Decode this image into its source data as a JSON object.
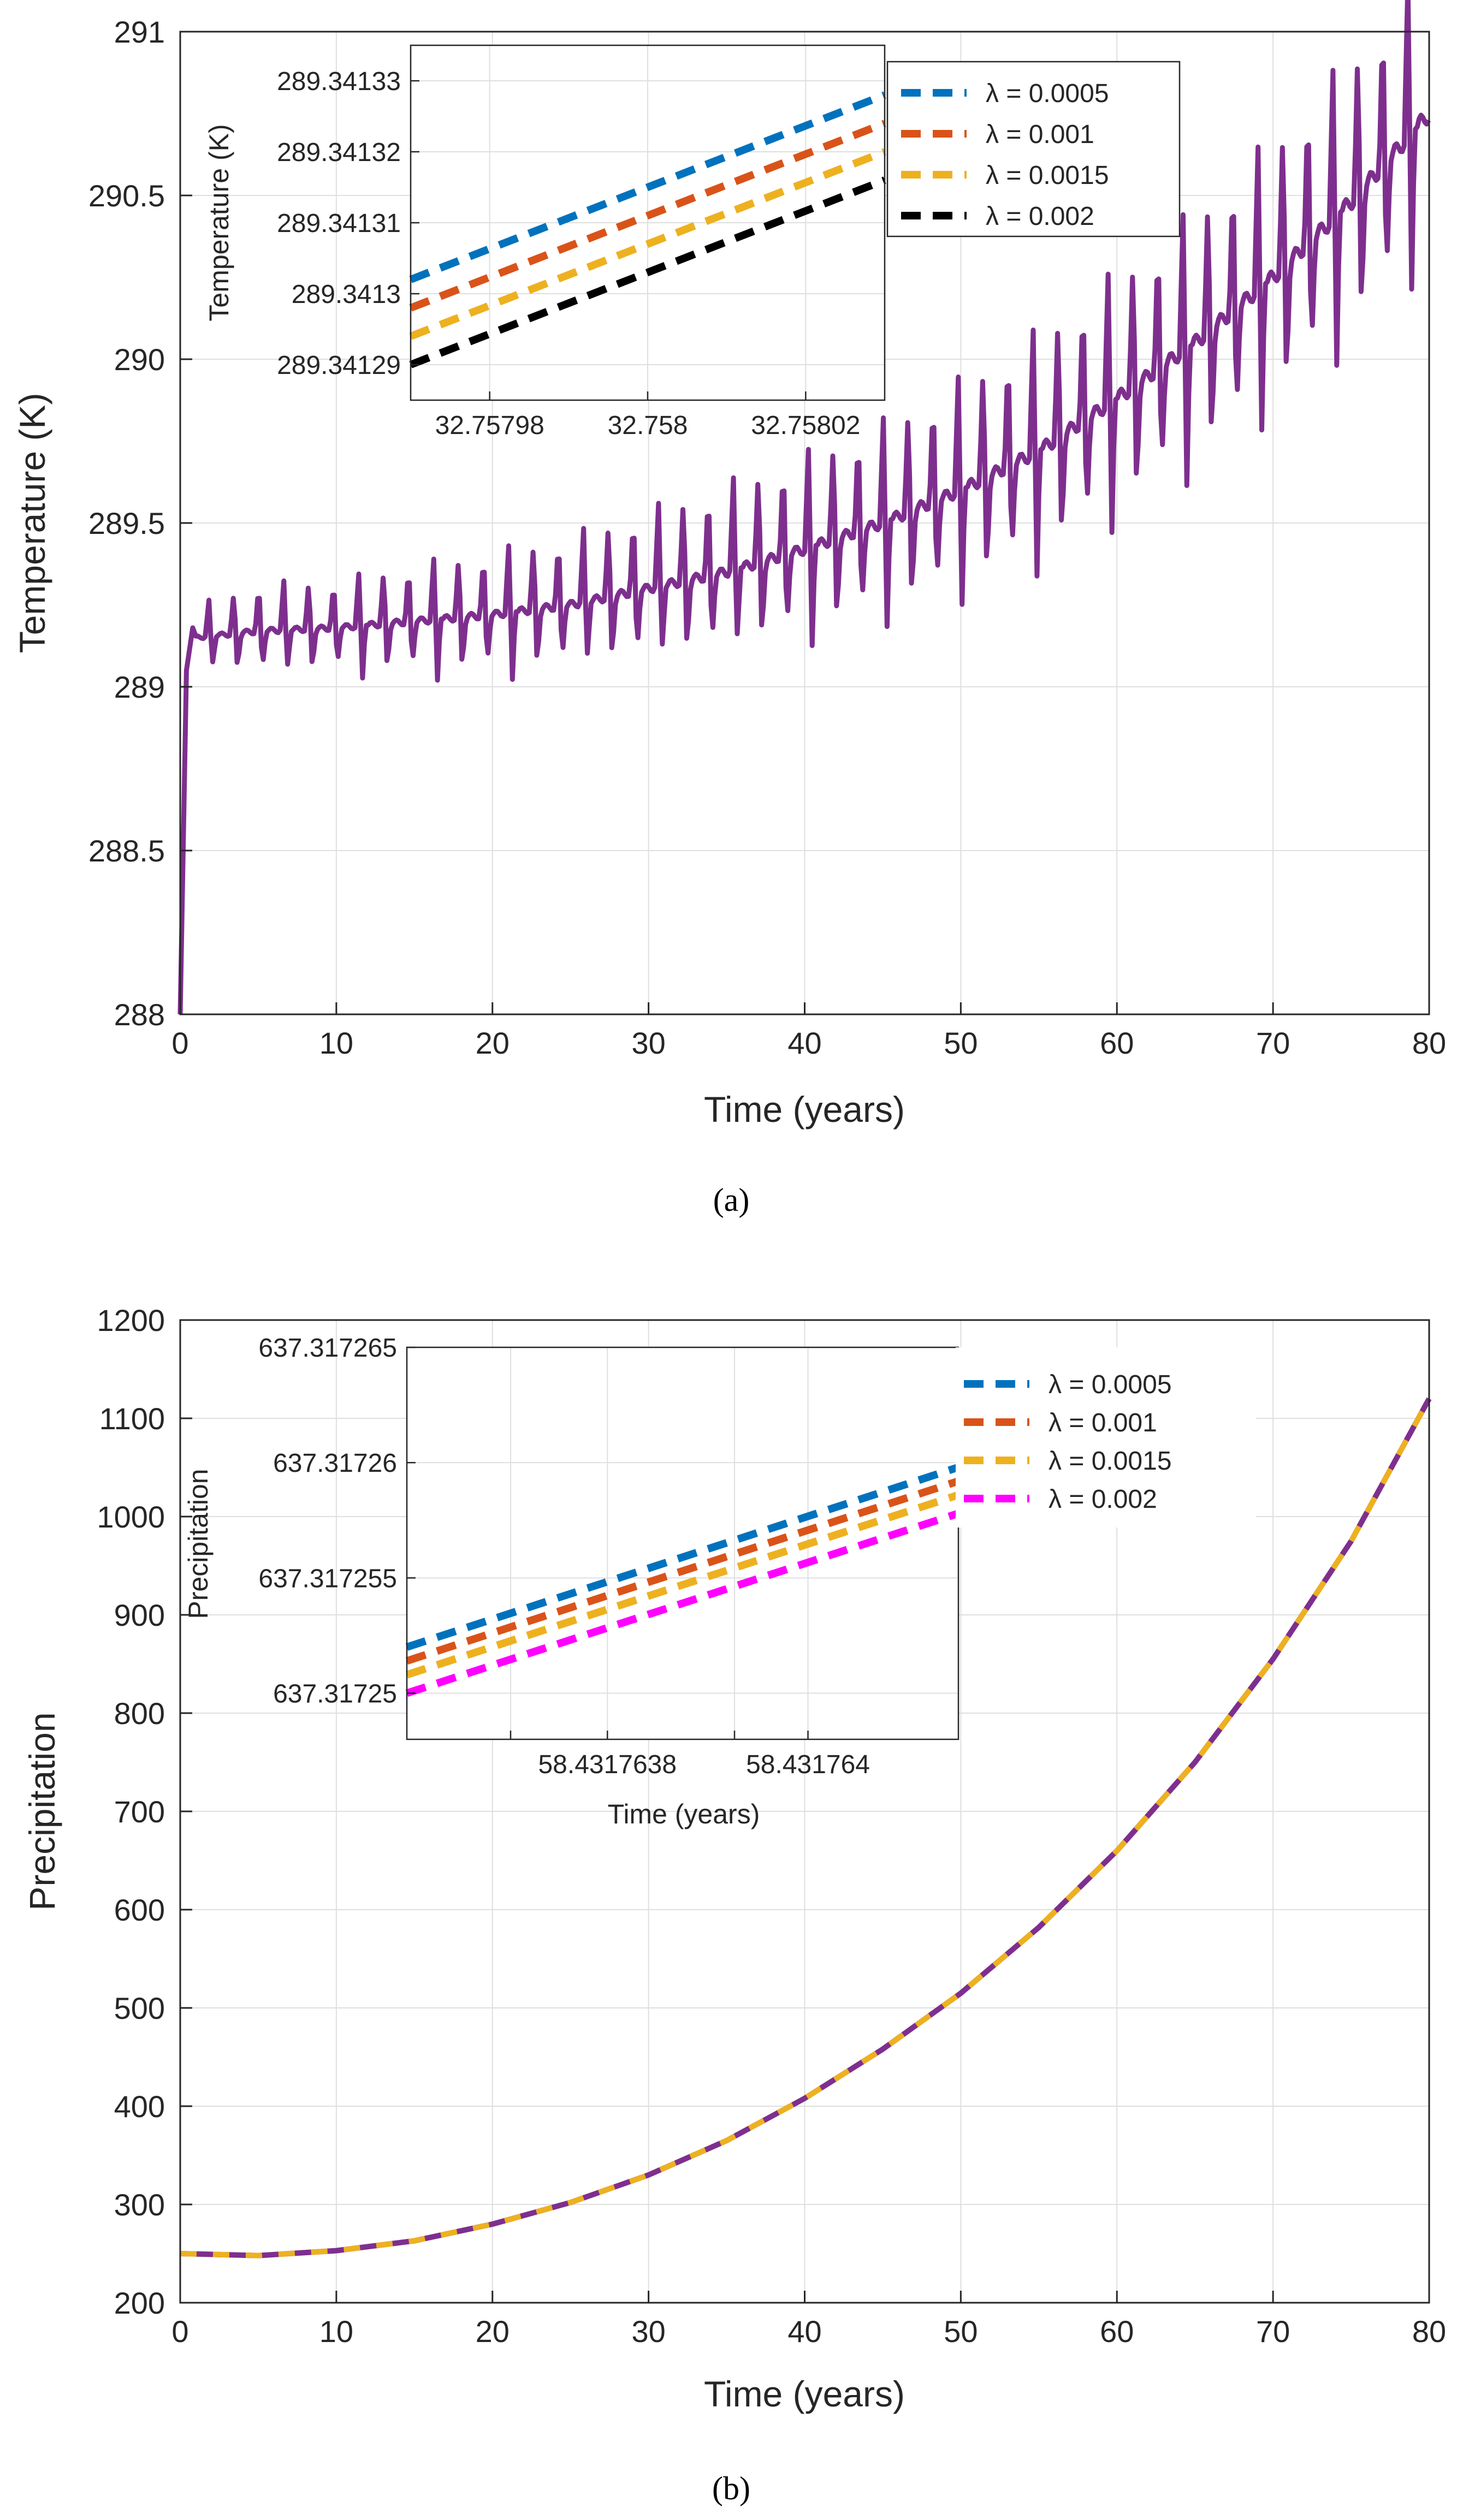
{
  "chart_data": [
    {
      "type": "line",
      "panel_label": "(a)",
      "xlabel": "Time (years)",
      "ylabel": "Temperature (K)",
      "xlim": [
        0,
        80
      ],
      "ylim": [
        288,
        291
      ],
      "x_ticks": [
        "0",
        "10",
        "20",
        "30",
        "40",
        "50",
        "60",
        "70",
        "80"
      ],
      "y_ticks": [
        "288",
        "288.5",
        "289",
        "289.5",
        "290",
        "290.5",
        "291"
      ],
      "grid": true,
      "series": [
        {
          "color": "#7E2F8E",
          "description_of_shape": "rapid rise from 288 to ~289.15 in first year, then oscillating upward trend",
          "x": [
            0,
            0.5,
            1,
            5,
            10,
            15,
            20,
            25,
            30,
            35,
            40,
            45,
            50,
            55,
            60,
            65,
            70,
            75,
            80
          ],
          "y": [
            288.0,
            289.1,
            289.15,
            289.17,
            289.18,
            289.2,
            289.22,
            289.25,
            289.3,
            289.35,
            289.42,
            289.5,
            289.6,
            289.72,
            289.88,
            290.05,
            290.25,
            290.48,
            290.75
          ],
          "oscillation_amplitude": [
            0.1,
            0.1,
            0.1,
            0.15,
            0.15,
            0.18,
            0.2,
            0.22,
            0.25,
            0.28,
            0.3,
            0.32,
            0.35,
            0.38,
            0.4,
            0.42,
            0.44,
            0.46,
            0.48
          ]
        }
      ],
      "inset": {
        "ylabel": "Temperature (K)",
        "xlim": [
          32.75797,
          32.75803
        ],
        "ylim": [
          289.341285,
          289.341335
        ],
        "x_ticks": [
          "32.75798",
          "32.758",
          "32.75802"
        ],
        "x_tick_values": [
          32.75798,
          32.758,
          32.75802
        ],
        "y_ticks": [
          "289.34129",
          "289.3413",
          "289.34131",
          "289.34132",
          "289.34133"
        ],
        "y_tick_values": [
          289.34129,
          289.3413,
          289.34131,
          289.34132,
          289.34133
        ],
        "legend_position": "top-right (outside inset, inside main axes)",
        "series": [
          {
            "name": "λ = 0.0005",
            "color": "#0072BD",
            "x": [
              32.75797,
              32.75803
            ],
            "y": [
              289.341302,
              289.341328
            ]
          },
          {
            "name": "λ = 0.001",
            "color": "#D95319",
            "x": [
              32.75797,
              32.75803
            ],
            "y": [
              289.341298,
              289.341324
            ]
          },
          {
            "name": "λ = 0.0015",
            "color": "#EDB120",
            "x": [
              32.75797,
              32.75803
            ],
            "y": [
              289.341294,
              289.34132
            ]
          },
          {
            "name": "λ = 0.002",
            "color": "#000000",
            "x": [
              32.75797,
              32.75803
            ],
            "y": [
              289.34129,
              289.341316
            ]
          }
        ]
      }
    },
    {
      "type": "line",
      "panel_label": "(b)",
      "xlabel": "Time (years)",
      "ylabel": "Precipitation",
      "xlim": [
        0,
        80
      ],
      "ylim": [
        200,
        1200
      ],
      "x_ticks": [
        "0",
        "10",
        "20",
        "30",
        "40",
        "50",
        "60",
        "70",
        "80"
      ],
      "y_ticks": [
        "200",
        "300",
        "400",
        "500",
        "600",
        "700",
        "800",
        "900",
        "1000",
        "1100",
        "1200"
      ],
      "grid": true,
      "series": [
        {
          "color": "#7E2F8E",
          "dash_color": "#EDB120",
          "x": [
            0,
            5,
            10,
            15,
            20,
            25,
            30,
            35,
            40,
            45,
            50,
            55,
            60,
            65,
            70,
            75,
            80
          ],
          "y": [
            250,
            248,
            253,
            263,
            280,
            302,
            330,
            365,
            408,
            458,
            515,
            582,
            660,
            750,
            855,
            975,
            1120
          ]
        }
      ],
      "inset": {
        "xlabel": "Time (years)",
        "ylabel": "Precipitation",
        "xlim": [
          58.4317636,
          58.43176415
        ],
        "ylim": [
          637.317248,
          637.317265
        ],
        "x_ticks": [
          "58.4317638",
          "58.431764"
        ],
        "x_tick_values": [
          58.4317638,
          58.431764
        ],
        "y_ticks": [
          "637.31725",
          "637.317255",
          "637.31726",
          "637.317265"
        ],
        "y_tick_values": [
          637.31725,
          637.317255,
          637.31726,
          637.317265
        ],
        "legend_position": "top-right (outside inset, inside main axes)",
        "series": [
          {
            "name": "λ = 0.0005",
            "color": "#0072BD",
            "x": [
              58.4317636,
              58.43176415
            ],
            "y": [
              637.317252,
              637.3172598
            ]
          },
          {
            "name": "λ = 0.001",
            "color": "#D95319",
            "x": [
              58.4317636,
              58.43176415
            ],
            "y": [
              637.3172514,
              637.3172592
            ]
          },
          {
            "name": "λ = 0.0015",
            "color": "#EDB120",
            "x": [
              58.4317636,
              58.43176415
            ],
            "y": [
              637.3172508,
              637.3172586
            ]
          },
          {
            "name": "λ = 0.002",
            "color": "#FF00FF",
            "x": [
              58.4317636,
              58.43176415
            ],
            "y": [
              637.31725,
              637.3172578
            ]
          }
        ]
      }
    }
  ]
}
